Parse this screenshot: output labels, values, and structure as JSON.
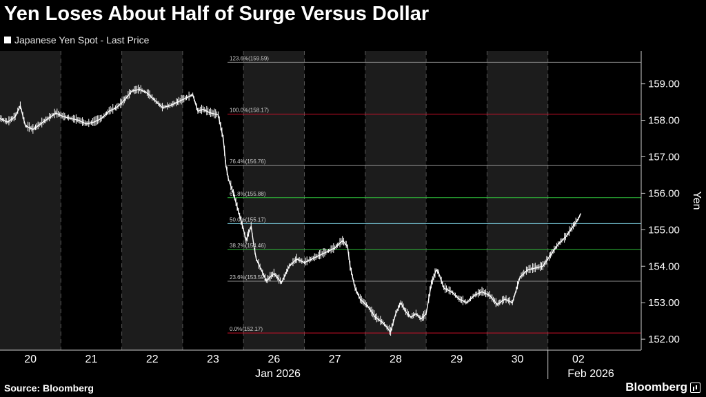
{
  "header": {
    "title": "Yen Loses About Half of Surge Versus Dollar",
    "legend": "Japanese Yen Spot - Last Price"
  },
  "footer": {
    "source": "Source: Bloomberg",
    "brand": "Bloomberg"
  },
  "colors": {
    "background": "#000000",
    "shade": "#1c1c1c",
    "price_line": "#ffffff",
    "fib_red": "#d0102a",
    "fib_white": "#8c8c8c",
    "fib_green": "#2fbf3a",
    "fib_cyan": "#7fd4e8"
  },
  "chart_data": {
    "type": "line",
    "series": [
      {
        "name": "Japanese Yen Spot - Last Price",
        "points": [
          [
            "Jan 20 00:00",
            158.05
          ],
          [
            "Jan 20 03:00",
            157.95
          ],
          [
            "Jan 20 06:00",
            158.1
          ],
          [
            "Jan 20 08:00",
            158.4
          ],
          [
            "Jan 20 10:00",
            157.85
          ],
          [
            "Jan 20 13:00",
            157.75
          ],
          [
            "Jan 20 16:00",
            157.9
          ],
          [
            "Jan 20 19:00",
            158.05
          ],
          [
            "Jan 20 22:00",
            158.2
          ],
          [
            "Jan 21 01:00",
            158.1
          ],
          [
            "Jan 21 04:00",
            158.05
          ],
          [
            "Jan 21 07:00",
            158.0
          ],
          [
            "Jan 21 10:00",
            157.9
          ],
          [
            "Jan 21 13:00",
            157.95
          ],
          [
            "Jan 21 16:00",
            158.05
          ],
          [
            "Jan 21 19:00",
            158.25
          ],
          [
            "Jan 21 22:00",
            158.35
          ],
          [
            "Jan 22 01:00",
            158.55
          ],
          [
            "Jan 22 04:00",
            158.8
          ],
          [
            "Jan 22 07:00",
            158.85
          ],
          [
            "Jan 22 10:00",
            158.75
          ],
          [
            "Jan 22 13:00",
            158.55
          ],
          [
            "Jan 22 16:00",
            158.35
          ],
          [
            "Jan 22 19:00",
            158.4
          ],
          [
            "Jan 22 22:00",
            158.5
          ],
          [
            "Jan 23 01:00",
            158.6
          ],
          [
            "Jan 23 04:00",
            158.7
          ],
          [
            "Jan 23 06:00",
            158.25
          ],
          [
            "Jan 23 08:00",
            158.3
          ],
          [
            "Jan 23 11:00",
            158.2
          ],
          [
            "Jan 23 14:00",
            158.15
          ],
          [
            "Jan 23 16:00",
            157.5
          ],
          [
            "Jan 23 17:00",
            156.8
          ],
          [
            "Jan 23 18:00",
            156.4
          ],
          [
            "Jan 23 19:00",
            156.2
          ],
          [
            "Jan 23 20:00",
            156.0
          ],
          [
            "Jan 23 21:00",
            155.75
          ],
          [
            "Jan 26 00:00",
            155.0
          ],
          [
            "Jan 26 01:00",
            154.7
          ],
          [
            "Jan 26 02:00",
            154.9
          ],
          [
            "Jan 26 03:00",
            155.1
          ],
          [
            "Jan 26 04:00",
            154.6
          ],
          [
            "Jan 26 05:00",
            154.2
          ],
          [
            "Jan 26 07:00",
            153.9
          ],
          [
            "Jan 26 09:00",
            153.6
          ],
          [
            "Jan 26 12:00",
            153.8
          ],
          [
            "Jan 26 15:00",
            153.55
          ],
          [
            "Jan 26 18:00",
            154.0
          ],
          [
            "Jan 26 21:00",
            154.2
          ],
          [
            "Jan 27 00:00",
            154.1
          ],
          [
            "Jan 27 03:00",
            154.2
          ],
          [
            "Jan 27 06:00",
            154.3
          ],
          [
            "Jan 27 09:00",
            154.4
          ],
          [
            "Jan 27 12:00",
            154.5
          ],
          [
            "Jan 27 15:00",
            154.7
          ],
          [
            "Jan 27 17:00",
            154.55
          ],
          [
            "Jan 27 18:00",
            154.0
          ],
          [
            "Jan 27 20:00",
            153.4
          ],
          [
            "Jan 27 22:00",
            153.1
          ],
          [
            "Jan 28 01:00",
            152.9
          ],
          [
            "Jan 28 04:00",
            152.6
          ],
          [
            "Jan 28 07:00",
            152.45
          ],
          [
            "Jan 28 10:00",
            152.2
          ],
          [
            "Jan 28 12:00",
            152.7
          ],
          [
            "Jan 28 14:00",
            153.0
          ],
          [
            "Jan 28 16:00",
            152.75
          ],
          [
            "Jan 28 18:00",
            152.6
          ],
          [
            "Jan 28 20:00",
            152.7
          ],
          [
            "Jan 28 22:00",
            152.55
          ],
          [
            "Jan 29 00:00",
            152.7
          ],
          [
            "Jan 29 02:00",
            153.5
          ],
          [
            "Jan 29 04:00",
            153.9
          ],
          [
            "Jan 29 05:00",
            153.8
          ],
          [
            "Jan 29 07:00",
            153.4
          ],
          [
            "Jan 29 10:00",
            153.3
          ],
          [
            "Jan 29 13:00",
            153.1
          ],
          [
            "Jan 29 16:00",
            153.0
          ],
          [
            "Jan 29 19:00",
            153.2
          ],
          [
            "Jan 29 22:00",
            153.3
          ],
          [
            "Jan 30 01:00",
            153.2
          ],
          [
            "Jan 30 04:00",
            152.95
          ],
          [
            "Jan 30 07:00",
            153.1
          ],
          [
            "Jan 30 10:00",
            153.0
          ],
          [
            "Jan 30 13:00",
            153.7
          ],
          [
            "Jan 30 16:00",
            153.9
          ],
          [
            "Jan 30 19:00",
            153.95
          ],
          [
            "Jan 30 22:00",
            154.0
          ],
          [
            "Feb 02 01:00",
            154.3
          ],
          [
            "Feb 02 04:00",
            154.6
          ],
          [
            "Feb 02 07:00",
            154.8
          ],
          [
            "Feb 02 10:00",
            155.1
          ],
          [
            "Feb 02 12:00",
            155.3
          ],
          [
            "Feb 02 13:00",
            155.45
          ]
        ]
      }
    ],
    "fib_levels": [
      {
        "label": "123.6%(159.59)",
        "value": 159.59,
        "color": "#8c8c8c"
      },
      {
        "label": "100.0%(158.17)",
        "value": 158.17,
        "color": "#d0102a"
      },
      {
        "label": "76.4%(156.76)",
        "value": 156.76,
        "color": "#8c8c8c"
      },
      {
        "label": "61.8%(155.88)",
        "value": 155.88,
        "color": "#2fbf3a"
      },
      {
        "label": "50.0%(155.17)",
        "value": 155.17,
        "color": "#7fd4e8"
      },
      {
        "label": "38.2%(154.46)",
        "value": 154.46,
        "color": "#2fbf3a"
      },
      {
        "label": "23.6%(153.59)",
        "value": 153.59,
        "color": "#8c8c8c"
      },
      {
        "label": "0.0%(152.17)",
        "value": 152.17,
        "color": "#d0102a"
      }
    ],
    "x_tick_labels": [
      "20",
      "21",
      "22",
      "23",
      "26",
      "27",
      "28",
      "29",
      "30",
      "02"
    ],
    "x_secondary_labels": [
      "Jan 2026",
      "Feb 2026"
    ],
    "y_tick_labels": [
      "159.00",
      "158.00",
      "157.00",
      "156.00",
      "155.00",
      "154.00",
      "153.00",
      "152.00"
    ],
    "y_ticks": [
      159,
      158,
      157,
      156,
      155,
      154,
      153,
      152
    ],
    "ylabel": "Yen",
    "ylim": [
      151.7,
      159.9
    ],
    "grid": "vertical dashed day separators, alternating shaded days"
  }
}
